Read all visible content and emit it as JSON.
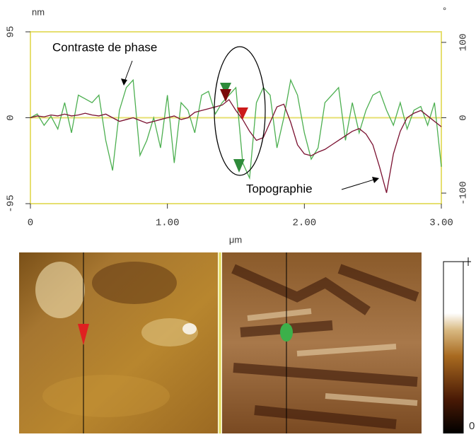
{
  "chart_data": {
    "type": "line",
    "x_label": "μm",
    "y_label": "nm",
    "y2_label": "°",
    "x": [
      0,
      0.05,
      0.1,
      0.15,
      0.2,
      0.25,
      0.3,
      0.35,
      0.4,
      0.45,
      0.5,
      0.55,
      0.6,
      0.65,
      0.7,
      0.75,
      0.8,
      0.85,
      0.9,
      0.95,
      1,
      1.05,
      1.1,
      1.15,
      1.2,
      1.25,
      1.3,
      1.35,
      1.4,
      1.45,
      1.5,
      1.55,
      1.6,
      1.65,
      1.7,
      1.75,
      1.8,
      1.85,
      1.9,
      1.95,
      2,
      2.05,
      2.1,
      2.15,
      2.2,
      2.25,
      2.3,
      2.35,
      2.4,
      2.45,
      2.5,
      2.55,
      2.6,
      2.65,
      2.7,
      2.75,
      2.8,
      2.85,
      2.9,
      2.95,
      3
    ],
    "series": [
      {
        "name": "Topographie",
        "color": "#7a1030",
        "values": [
          0,
          2,
          1,
          3,
          2,
          4,
          2,
          3,
          5,
          3,
          2,
          4,
          0,
          -4,
          -2,
          0,
          -3,
          -6,
          -4,
          -2,
          0,
          2,
          -2,
          0,
          6,
          8,
          10,
          12,
          14,
          20,
          8,
          -2,
          -15,
          -25,
          -22,
          -5,
          12,
          15,
          -5,
          -30,
          -40,
          -42,
          -38,
          -35,
          -30,
          -25,
          -20,
          -15,
          -12,
          -18,
          -30,
          -55,
          -83,
          -40,
          -15,
          0,
          5,
          8,
          2,
          -4,
          -10
        ]
      },
      {
        "name": "Contraste de phase",
        "color": "#4caf50",
        "axis": "y2",
        "values": [
          0,
          5,
          -10,
          2,
          -15,
          20,
          -20,
          30,
          25,
          20,
          30,
          -30,
          -70,
          10,
          40,
          50,
          -50,
          -30,
          0,
          -40,
          30,
          -60,
          20,
          10,
          -20,
          30,
          35,
          5,
          20,
          30,
          40,
          -60,
          -80,
          20,
          40,
          30,
          -40,
          0,
          50,
          30,
          -20,
          -55,
          -40,
          20,
          30,
          40,
          -30,
          20,
          -20,
          10,
          30,
          35,
          10,
          -10,
          20,
          -15,
          10,
          15,
          -10,
          20,
          -65
        ]
      }
    ],
    "xlim": [
      0,
      3
    ],
    "xticks": [
      0,
      {
        "value": 1,
        "label": "1.00"
      },
      {
        "value": 2,
        "label": "2.00"
      },
      {
        "value": 3,
        "label": "3.00"
      }
    ],
    "ylim": [
      -95,
      95
    ],
    "yticks": [
      -95,
      0,
      95
    ],
    "y2lim": [
      -114,
      114
    ],
    "y2ticks": [
      -100,
      0,
      100
    ],
    "zero_line": true,
    "colorbar_label": "0"
  }
}
